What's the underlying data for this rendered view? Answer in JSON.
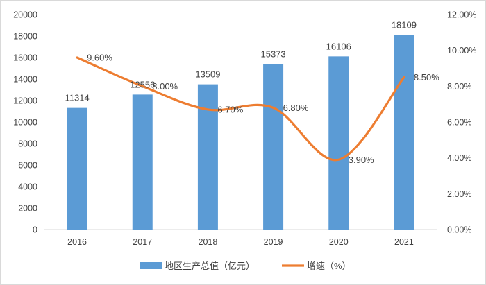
{
  "chart_data": {
    "type": "bar+line",
    "categories": [
      "2016",
      "2017",
      "2018",
      "2019",
      "2020",
      "2021"
    ],
    "series": [
      {
        "name": "地区生产总值（亿元）",
        "type": "bar",
        "axis": "left",
        "values": [
          11314,
          12556,
          13509,
          15373,
          16106,
          18109
        ],
        "labels": [
          "11314",
          "12556",
          "13509",
          "15373",
          "16106",
          "18109"
        ],
        "color": "#5b9bd5"
      },
      {
        "name": "增速（%）",
        "type": "line",
        "axis": "right",
        "values": [
          9.6,
          8.0,
          6.7,
          6.8,
          3.9,
          8.5
        ],
        "labels": [
          "9.60%",
          "8.00%",
          "6.70%",
          "6.80%",
          "3.90%",
          "8.50%"
        ],
        "color": "#ed7d31"
      }
    ],
    "y_left": {
      "range": [
        0,
        20000
      ],
      "ticks": [
        "0",
        "2000",
        "4000",
        "6000",
        "8000",
        "10000",
        "12000",
        "14000",
        "16000",
        "18000",
        "20000"
      ]
    },
    "y_right": {
      "range": [
        0,
        12
      ],
      "ticks": [
        "0.00%",
        "2.00%",
        "4.00%",
        "6.00%",
        "8.00%",
        "10.00%",
        "12.00%"
      ]
    },
    "grid": false,
    "legend": "bottom"
  }
}
